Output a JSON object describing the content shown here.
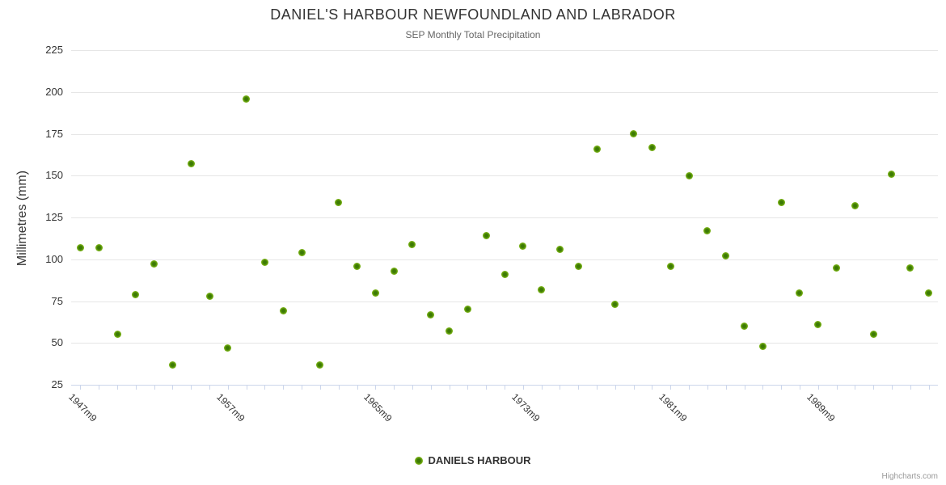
{
  "title": "DANIEL'S HARBOUR NEWFOUNDLAND AND LABRADOR",
  "subtitle": "SEP Monthly Total Precipitation",
  "legend": {
    "series_label": "DANIELS HARBOUR"
  },
  "credit": "Highcharts.com",
  "colors": {
    "marker": "#74ae12",
    "marker_center": "#3c7a04",
    "marker_edge": "#9cc83e",
    "grid": "#e6e6e6",
    "axis": "#ccd6eb"
  },
  "chart_data": {
    "type": "scatter",
    "title": "DANIEL'S HARBOUR NEWFOUNDLAND AND LABRADOR",
    "subtitle": "SEP Monthly Total Precipitation",
    "xlabel": "",
    "ylabel": "Millimetres (mm)",
    "ylim": [
      25,
      225
    ],
    "ytick_interval": 25,
    "yticks": [
      25,
      50,
      75,
      100,
      125,
      150,
      175,
      200,
      225
    ],
    "grid": true,
    "legend_position": "bottom",
    "x_tick_labels": [
      {
        "index": 0,
        "label": "1947m9"
      },
      {
        "index": 8,
        "label": "1957m9"
      },
      {
        "index": 16,
        "label": "1965m9"
      },
      {
        "index": 24,
        "label": "1973m9"
      },
      {
        "index": 32,
        "label": "1981m9"
      },
      {
        "index": 40,
        "label": "1989m9"
      }
    ],
    "series": [
      {
        "name": "DANIELS HARBOUR",
        "values": [
          107,
          107,
          55,
          79,
          97,
          37,
          157,
          78,
          47,
          196,
          98,
          69,
          104,
          37,
          134,
          96,
          80,
          93,
          109,
          67,
          57,
          70,
          114,
          91,
          108,
          82,
          106,
          96,
          166,
          73,
          175,
          167,
          96,
          150,
          117,
          102,
          60,
          48,
          134,
          80,
          61,
          95,
          132,
          55,
          151,
          95,
          80
        ]
      }
    ]
  }
}
